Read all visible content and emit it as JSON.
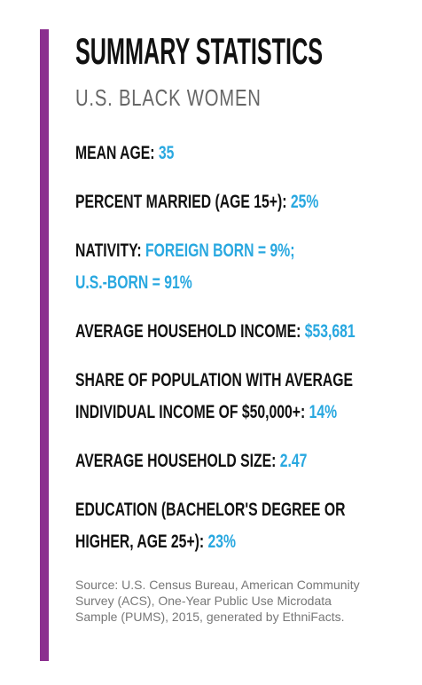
{
  "header": {
    "title": "SUMMARY STATISTICS",
    "subtitle": "U.S. BLACK WOMEN"
  },
  "items": [
    {
      "label": "MEAN AGE:",
      "values": [
        "35"
      ]
    },
    {
      "label": "PERCENT MARRIED (AGE 15+):",
      "values": [
        "25%"
      ]
    },
    {
      "label": "NATIVITY:",
      "values": [
        "FOREIGN BORN = 9%;",
        "U.S.-BORN = 91%"
      ]
    },
    {
      "label": "AVERAGE HOUSEHOLD INCOME:",
      "values": [
        "$53,681"
      ]
    },
    {
      "label": "SHARE OF POPULATION WITH AVERAGE INDIVIDUAL INCOME OF $50,000+:",
      "values": [
        "14%"
      ]
    },
    {
      "label": "AVERAGE HOUSEHOLD SIZE:",
      "values": [
        "2.47"
      ]
    },
    {
      "label": "EDUCATION (BACHELOR'S DEGREE OR HIGHER, AGE 25+):",
      "values": [
        "23%"
      ]
    }
  ],
  "source": "Source: U.S. Census Bureau, American Community Survey (ACS), One-Year Public Use Microdata Sample (PUMS), 2015, generated by EthniFacts."
}
